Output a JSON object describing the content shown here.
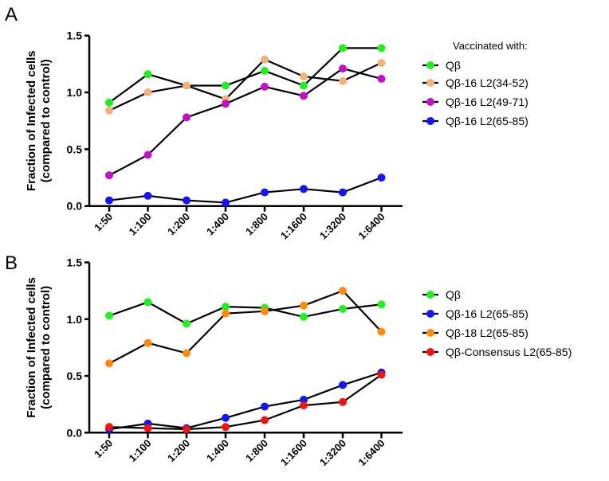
{
  "chart_data": [
    {
      "type": "line",
      "panel_label": "A",
      "ylabel_line1": "Fraction of Infected cells",
      "ylabel_line2": "(compared to control)",
      "ylim": [
        0,
        1.5
      ],
      "yticks": [
        "0.0",
        "0.5",
        "1.0",
        "1.5"
      ],
      "ytick_values": [
        0,
        0.5,
        1.0,
        1.5
      ],
      "categories": [
        "1:50",
        "1:100",
        "1:200",
        "1:400",
        "1:800",
        "1:1600",
        "1:3200",
        "1:6400"
      ],
      "legend_title": "Vaccinated with:",
      "legend_placement": "right",
      "series": [
        {
          "name": "Qβ",
          "color": "#22ee22",
          "values": [
            0.91,
            1.16,
            1.06,
            1.06,
            1.19,
            1.06,
            1.39,
            1.39
          ]
        },
        {
          "name": "Qβ-16 L2(34-52)",
          "color": "#f2b37a",
          "values": [
            0.84,
            1.0,
            1.06,
            0.94,
            1.29,
            1.14,
            1.1,
            1.26
          ]
        },
        {
          "name": "Qβ-16 L2(49-71)",
          "color": "#c010c8",
          "values": [
            0.27,
            0.45,
            0.78,
            0.9,
            1.05,
            0.97,
            1.21,
            1.12
          ]
        },
        {
          "name": "Qβ-16 L2(65-85)",
          "color": "#1515ee",
          "values": [
            0.05,
            0.09,
            0.05,
            0.03,
            0.12,
            0.15,
            0.12,
            0.25
          ]
        }
      ]
    },
    {
      "type": "line",
      "panel_label": "B",
      "ylabel_line1": "Fraction of Infected cells",
      "ylabel_line2": "(compared to control)",
      "ylim": [
        0,
        1.5
      ],
      "yticks": [
        "0.0",
        "0.5",
        "1.0",
        "1.5"
      ],
      "ytick_values": [
        0,
        0.5,
        1.0,
        1.5
      ],
      "categories": [
        "1:50",
        "1:100",
        "1:200",
        "1:400",
        "1:800",
        "1:1600",
        "1:3200",
        "1:6400"
      ],
      "legend_placement": "right",
      "series": [
        {
          "name": "Qβ",
          "color": "#22ee22",
          "values": [
            1.03,
            1.15,
            0.96,
            1.11,
            1.1,
            1.02,
            1.09,
            1.13
          ]
        },
        {
          "name": "Qβ-16 L2(65-85)",
          "color": "#1515ee",
          "values": [
            0.03,
            0.08,
            0.04,
            0.13,
            0.23,
            0.29,
            0.42,
            0.53
          ]
        },
        {
          "name": "Qβ-18 L2(65-85)",
          "color": "#ff8a10",
          "values": [
            0.61,
            0.79,
            0.7,
            1.05,
            1.07,
            1.12,
            1.25,
            0.89
          ]
        },
        {
          "name": "Qβ-Consensus L2(65-85)",
          "color": "#ee1515",
          "values": [
            0.05,
            0.04,
            0.03,
            0.05,
            0.11,
            0.24,
            0.27,
            0.51
          ]
        }
      ]
    }
  ]
}
